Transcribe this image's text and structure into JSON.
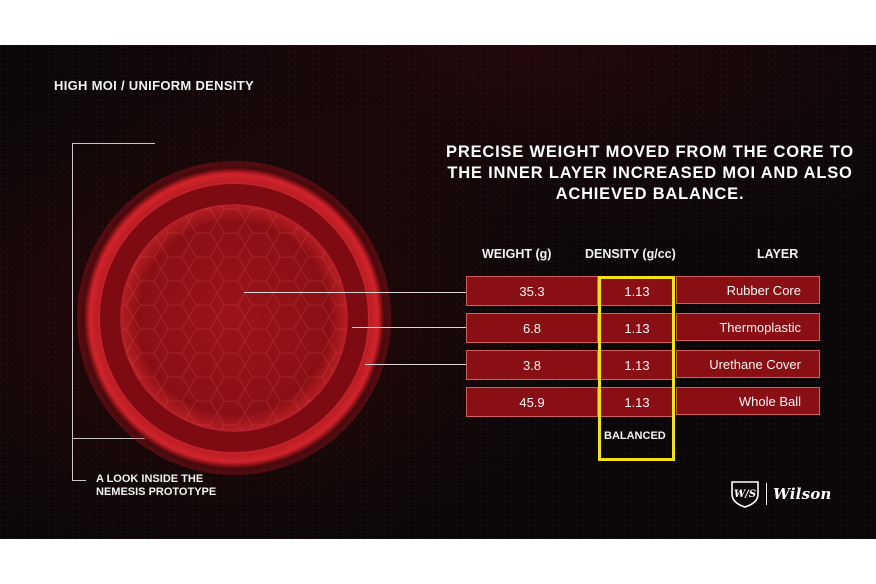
{
  "headline_small": "HIGH MOI / UNIFORM DENSITY",
  "headline": "PRECISE WEIGHT MOVED FROM THE CORE TO THE INNER LAYER INCREASED MOI AND ALSO ACHIEVED BALANCE.",
  "caption_line1": "A LOOK INSIDE THE",
  "caption_line2": "NEMESIS PROTOTYPE",
  "table": {
    "headers": {
      "weight": "WEIGHT (g)",
      "density": "DENSITY (g/cc)",
      "layer": "LAYER"
    },
    "rows": [
      {
        "weight": "35.3",
        "density": "1.13",
        "layer": "Rubber Core"
      },
      {
        "weight": "6.8",
        "density": "1.13",
        "layer": "Thermoplastic"
      },
      {
        "weight": "3.8",
        "density": "1.13",
        "layer": "Urethane Cover"
      },
      {
        "weight": "45.9",
        "density": "1.13",
        "layer": "Whole Ball"
      }
    ],
    "highlight_label": "BALANCED"
  },
  "logo": {
    "wordmark": "Wilson",
    "monogram": "W/S"
  },
  "colors": {
    "accent_red": "#8a0f14",
    "highlight_yellow": "#f3e21b",
    "background": "#0b0708"
  },
  "icons": {
    "ball": "golf-ball-cross-section-graphic",
    "logo": "wilson-staff-logo"
  }
}
